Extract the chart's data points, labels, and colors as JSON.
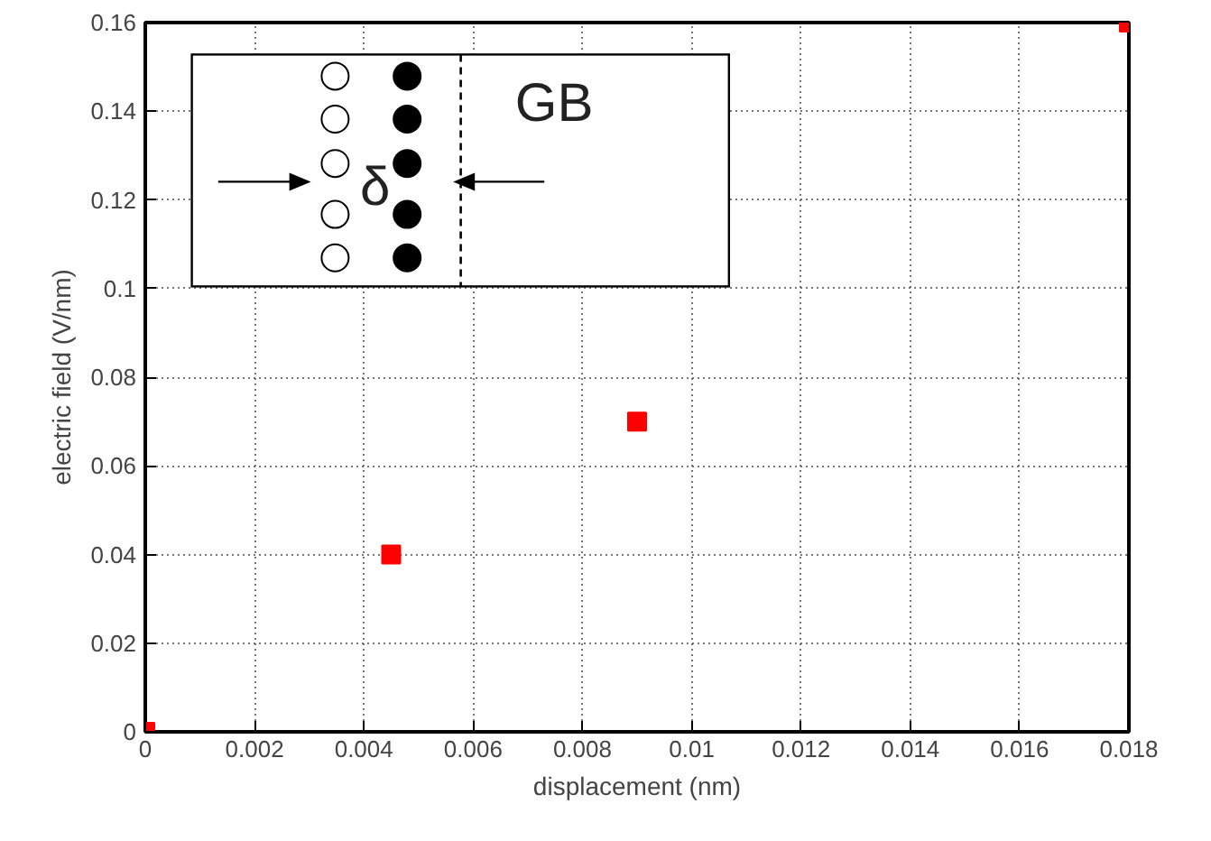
{
  "chart_data": {
    "type": "scatter",
    "xlabel": "displacement (nm)",
    "ylabel": "electric field (V/nm)",
    "x": [
      0,
      0.0045,
      0.009,
      0.018
    ],
    "series": [
      {
        "color": "#ff0000",
        "values": [
          0,
          0.04,
          0.07,
          0.16
        ]
      }
    ],
    "xlim": [
      0,
      0.018
    ],
    "ylim": [
      0,
      0.16
    ],
    "xticks": [
      0,
      0.002,
      0.004,
      0.006,
      0.008,
      0.01,
      0.012,
      0.014,
      0.016,
      0.018
    ],
    "yticks": [
      0,
      0.02,
      0.04,
      0.06,
      0.08,
      0.1,
      0.12,
      0.14,
      0.16
    ],
    "grid": true,
    "marker": "square",
    "annotations": [
      "GB",
      "δ"
    ]
  }
}
